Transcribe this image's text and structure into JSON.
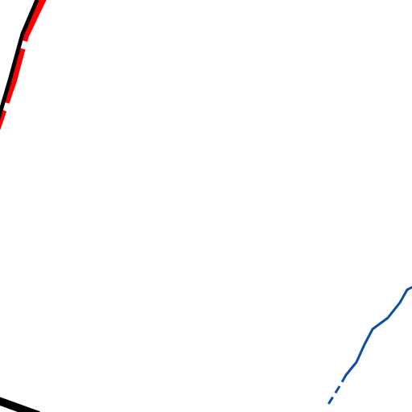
{
  "map": {
    "background_color": "#ffffff",
    "features": {
      "rail_red": {
        "color": "#ff0000"
      },
      "rail_black": {
        "color": "#000000"
      },
      "waterway": {
        "color": "#0b4ea2"
      },
      "road_black": {
        "color": "#000000"
      }
    }
  }
}
